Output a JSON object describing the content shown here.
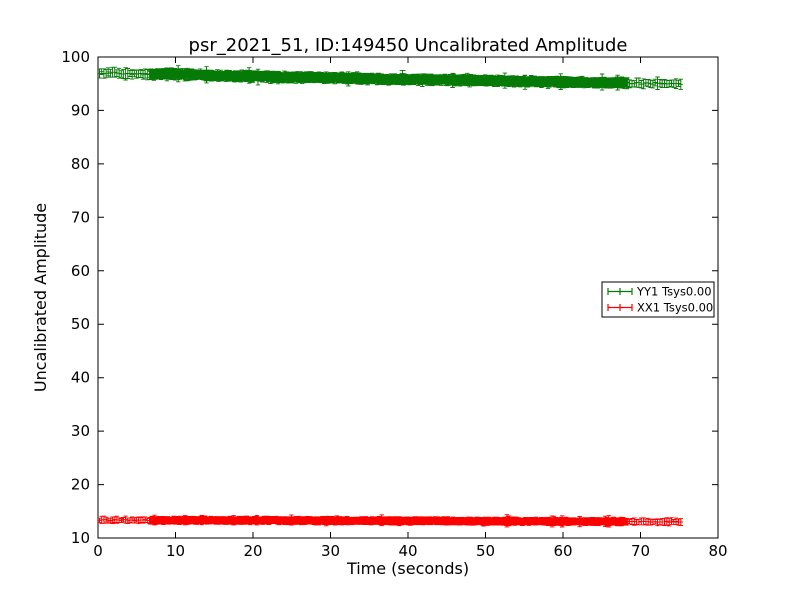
{
  "figure": {
    "background": "#ffffff",
    "axes_color": "#000000"
  },
  "chart_data": {
    "type": "errorbar",
    "title": "psr_2021_51, ID:149450 Uncalibrated Amplitude",
    "xlabel": "Time (seconds)",
    "ylabel": "Uncalibrated Amplitude",
    "xlim": [
      0,
      80
    ],
    "ylim": [
      10,
      100
    ],
    "xticks": [
      0,
      10,
      20,
      30,
      40,
      50,
      60,
      70,
      80
    ],
    "yticks": [
      10,
      20,
      30,
      40,
      50,
      60,
      70,
      80,
      90,
      100
    ],
    "grid": false,
    "legend": {
      "location": "center-right",
      "entries": [
        {
          "label": "YY1 Tsys0.00",
          "color": "#067a06"
        },
        {
          "label": "XX1 Tsys0.00",
          "color": "#ff0000"
        }
      ]
    },
    "series": [
      {
        "name": "YY1 Tsys0.00",
        "color": "#067a06",
        "marker": "plus-with-errorbars",
        "center_points": [
          [
            0,
            97.1
          ],
          [
            3,
            96.9
          ],
          [
            6.7,
            96.7
          ],
          [
            8,
            96.9
          ],
          [
            12,
            96.7
          ],
          [
            16,
            96.5
          ],
          [
            20,
            96.4
          ],
          [
            25,
            96.2
          ],
          [
            30,
            96.1
          ],
          [
            35,
            95.9
          ],
          [
            40,
            95.8
          ],
          [
            45,
            95.7
          ],
          [
            50,
            95.6
          ],
          [
            55,
            95.4
          ],
          [
            60,
            95.3
          ],
          [
            65,
            95.2
          ],
          [
            70,
            95.1
          ],
          [
            75.2,
            95.0
          ]
        ],
        "error_halfwidth": 0.75,
        "scatter": 0.2,
        "segments": [
          [
            0.2,
            6.7,
            0.28
          ],
          [
            6.7,
            68.3,
            0.05
          ],
          [
            68.3,
            75.2,
            0.3
          ]
        ],
        "outliers": [
          [
            39.3,
            96.9,
            0.6
          ]
        ]
      },
      {
        "name": "XX1 Tsys0.00",
        "color": "#ff0000",
        "marker": "plus-with-errorbars",
        "center_points": [
          [
            0,
            13.35
          ],
          [
            10,
            13.3
          ],
          [
            20,
            13.3
          ],
          [
            40,
            13.2
          ],
          [
            60,
            13.1
          ],
          [
            75.2,
            13.05
          ]
        ],
        "error_halfwidth": 0.55,
        "scatter": 0.12,
        "segments": [
          [
            0.2,
            6.7,
            0.28
          ],
          [
            6.7,
            68.3,
            0.05
          ],
          [
            68.3,
            75.2,
            0.3
          ]
        ],
        "outliers": []
      }
    ]
  }
}
